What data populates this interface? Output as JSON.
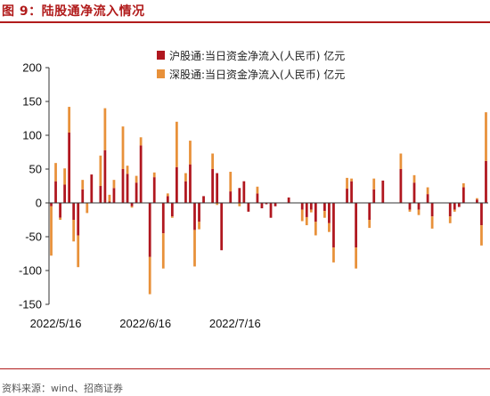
{
  "figure": {
    "title": "图 9：陆股通净流入情况",
    "source": "资料来源：wind、招商证券"
  },
  "colors": {
    "accent": "#b11b1b",
    "series_hu": "#b0171f",
    "series_shen": "#e8913a"
  },
  "chart_data": {
    "type": "bar",
    "stacked": true,
    "title": "",
    "xlabel": "",
    "ylabel": "",
    "ylim": [
      -150,
      200
    ],
    "yticks": [
      -150,
      -100,
      -50,
      0,
      50,
      100,
      150,
      200
    ],
    "x_tick_labels": [
      {
        "index": 1,
        "label": "2022/5/16"
      },
      {
        "index": 21,
        "label": "2022/6/16"
      },
      {
        "index": 41,
        "label": "2022/7/16"
      }
    ],
    "legend_position": "top-right",
    "grid": false,
    "series": [
      {
        "name": "沪股通:当日资金净流入(人民币) 亿元",
        "values": [
          -5,
          32,
          -22,
          27,
          104,
          -25,
          -48,
          20,
          0,
          42,
          0,
          25,
          78,
          2,
          22,
          0,
          50,
          43,
          -5,
          30,
          85,
          0,
          -80,
          38,
          0,
          -45,
          10,
          -20,
          53,
          0,
          32,
          57,
          -40,
          -28,
          10,
          0,
          50,
          44,
          -70,
          0,
          17,
          0,
          22,
          32,
          -13,
          0,
          14,
          -8,
          -2,
          -22,
          -5,
          0,
          0,
          8,
          0,
          0,
          -10,
          -21,
          -10,
          -28,
          0,
          -12,
          -30,
          -66,
          0,
          0,
          21,
          32,
          -66,
          0,
          0,
          -25,
          20,
          0,
          33,
          0,
          0,
          0,
          50,
          0,
          -10,
          30,
          -10,
          0,
          13,
          -20,
          0,
          0,
          0,
          -20,
          -10,
          -6,
          23,
          0,
          0,
          5,
          -33,
          62
        ],
        "values_note": "approximate, read from bars"
      },
      {
        "name": "深股通:当日资金净流入(人民币) 亿元",
        "values": [
          -73,
          27,
          -3,
          24,
          38,
          -32,
          -47,
          14,
          -15,
          0,
          0,
          45,
          62,
          10,
          12,
          0,
          63,
          12,
          -2,
          10,
          12,
          0,
          -55,
          7,
          0,
          -52,
          4,
          -2,
          67,
          0,
          12,
          35,
          -54,
          -11,
          0,
          0,
          23,
          -3,
          0,
          0,
          29,
          0,
          -5,
          0,
          0,
          0,
          10,
          0,
          0,
          0,
          0,
          0,
          0,
          0,
          0,
          0,
          -17,
          -12,
          -4,
          -20,
          0,
          -10,
          -13,
          -22,
          0,
          0,
          16,
          4,
          -31,
          0,
          0,
          -12,
          16,
          0,
          0,
          0,
          0,
          0,
          23,
          0,
          -3,
          11,
          -8,
          0,
          10,
          -18,
          0,
          0,
          0,
          -10,
          -3,
          0,
          6,
          0,
          0,
          2,
          -30,
          72
        ]
      }
    ]
  }
}
